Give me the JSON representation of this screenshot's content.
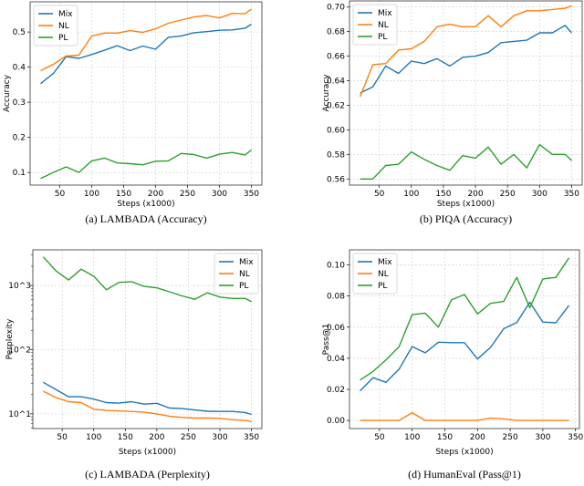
{
  "colors": {
    "Mix": "#1f77b4",
    "NL": "#ff7f0e",
    "PL": "#2ca02c"
  },
  "chart_data": [
    {
      "type": "line",
      "caption": "(a) LAMBADA (Accuracy)",
      "xlabel": "",
      "ylabel": "Accuracy",
      "xlim": [
        3.5,
        366.5
      ],
      "ylim": [
        0.064,
        0.586
      ],
      "yscale": "linear",
      "xticks": [
        50,
        100,
        150,
        200,
        250,
        300,
        350
      ],
      "yticks": [
        0.1,
        0.2,
        0.3,
        0.4,
        0.5
      ],
      "ytick_labels": [
        "0.1",
        "0.2",
        "0.3",
        "0.4",
        "0.5"
      ],
      "grid": true,
      "legend": "top-left",
      "x": [
        20,
        40,
        60,
        80,
        100,
        120,
        140,
        160,
        180,
        200,
        220,
        240,
        260,
        280,
        300,
        320,
        340,
        350
      ],
      "series": [
        {
          "name": "Mix",
          "values": [
            0.353,
            0.382,
            0.43,
            0.425,
            0.436,
            0.448,
            0.461,
            0.447,
            0.46,
            0.451,
            0.485,
            0.489,
            0.498,
            0.501,
            0.505,
            0.506,
            0.511,
            0.522
          ]
        },
        {
          "name": "NL",
          "values": [
            0.39,
            0.408,
            0.432,
            0.434,
            0.489,
            0.497,
            0.497,
            0.504,
            0.499,
            0.509,
            0.525,
            0.534,
            0.543,
            0.547,
            0.54,
            0.553,
            0.552,
            0.565
          ]
        },
        {
          "name": "PL",
          "values": [
            0.083,
            0.1,
            0.116,
            0.1,
            0.133,
            0.141,
            0.127,
            0.125,
            0.122,
            0.132,
            0.133,
            0.154,
            0.151,
            0.141,
            0.152,
            0.157,
            0.15,
            0.164
          ]
        }
      ]
    },
    {
      "type": "line",
      "caption": "(b) PIQA (Accuracy)",
      "xlabel": "",
      "ylabel": "Accuracy",
      "xlim": [
        3.5,
        366.5
      ],
      "ylim": [
        0.555,
        0.705
      ],
      "yscale": "linear",
      "xticks": [
        50,
        100,
        150,
        200,
        250,
        300,
        350
      ],
      "yticks": [
        0.56,
        0.58,
        0.6,
        0.62,
        0.64,
        0.66,
        0.68,
        0.7
      ],
      "ytick_labels": [
        "0.56",
        "0.58",
        "0.60",
        "0.62",
        "0.64",
        "0.66",
        "0.68",
        "0.70"
      ],
      "grid": true,
      "legend": "top-left",
      "x": [
        20,
        40,
        60,
        80,
        100,
        120,
        140,
        160,
        180,
        200,
        220,
        240,
        260,
        280,
        300,
        320,
        340,
        350
      ],
      "series": [
        {
          "name": "Mix",
          "values": [
            0.63,
            0.635,
            0.652,
            0.646,
            0.656,
            0.654,
            0.658,
            0.652,
            0.659,
            0.66,
            0.663,
            0.671,
            0.672,
            0.673,
            0.679,
            0.679,
            0.685,
            0.679
          ]
        },
        {
          "name": "NL",
          "values": [
            0.627,
            0.653,
            0.654,
            0.665,
            0.666,
            0.672,
            0.684,
            0.686,
            0.684,
            0.684,
            0.693,
            0.684,
            0.693,
            0.697,
            0.697,
            0.698,
            0.699,
            0.701
          ]
        },
        {
          "name": "PL",
          "values": [
            0.56,
            0.56,
            0.571,
            0.572,
            0.582,
            0.576,
            0.571,
            0.567,
            0.579,
            0.577,
            0.586,
            0.572,
            0.58,
            0.569,
            0.588,
            0.58,
            0.58,
            0.575
          ]
        }
      ]
    },
    {
      "type": "line",
      "caption": "(c) LAMBADA (Perplexity)",
      "xlabel": "Steps (x1000)",
      "ylabel": "Perplexity",
      "xlim": [
        3.5,
        366.5
      ],
      "ylim": [
        5.9,
        3600
      ],
      "yscale": "log",
      "xticks": [
        50,
        100,
        150,
        200,
        250,
        300,
        350
      ],
      "yticks": [
        10,
        100,
        1000
      ],
      "ytick_labels": [
        "10^1",
        "10^2",
        "10^3"
      ],
      "grid": true,
      "legend": "top-right",
      "x": [
        20,
        40,
        60,
        80,
        100,
        120,
        140,
        160,
        180,
        200,
        220,
        240,
        260,
        280,
        300,
        320,
        340,
        350
      ],
      "series": [
        {
          "name": "Mix",
          "values": [
            31,
            24,
            18.5,
            18.5,
            17,
            15,
            14.7,
            15.5,
            14.2,
            14.6,
            12.3,
            12.1,
            11.5,
            11,
            10.9,
            10.9,
            10.5,
            9.8
          ]
        },
        {
          "name": "NL",
          "values": [
            22.5,
            18,
            15.5,
            15,
            11.8,
            11.3,
            11.1,
            10.9,
            10.6,
            10,
            9.2,
            8.8,
            8.6,
            8.6,
            8.5,
            8.1,
            7.9,
            7.6
          ]
        },
        {
          "name": "PL",
          "values": [
            2800,
            1700,
            1220,
            1800,
            1400,
            860,
            1120,
            1150,
            970,
            920,
            800,
            690,
            610,
            770,
            660,
            630,
            630,
            560
          ]
        }
      ]
    },
    {
      "type": "line",
      "caption": "(d) HumanEval (Pass@1)",
      "xlabel": "Steps (x1000)",
      "ylabel": "Pass@1",
      "xlim": [
        4,
        356
      ],
      "ylim": [
        -0.0052,
        0.1097
      ],
      "yscale": "linear",
      "xticks": [
        50,
        100,
        150,
        200,
        250,
        300,
        350
      ],
      "yticks": [
        0.0,
        0.02,
        0.04,
        0.06,
        0.08,
        0.1
      ],
      "ytick_labels": [
        "0.00",
        "0.02",
        "0.04",
        "0.06",
        "0.08",
        "0.10"
      ],
      "grid": true,
      "legend": "top-left",
      "x": [
        20,
        40,
        60,
        80,
        100,
        120,
        140,
        160,
        180,
        200,
        220,
        240,
        260,
        280,
        300,
        320,
        340
      ],
      "series": [
        {
          "name": "Mix",
          "values": [
            0.019,
            0.0275,
            0.0245,
            0.033,
            0.0475,
            0.0435,
            0.0503,
            0.05,
            0.05,
            0.0395,
            0.047,
            0.059,
            0.063,
            0.076,
            0.0633,
            0.0628,
            0.074
          ]
        },
        {
          "name": "NL",
          "values": [
            0,
            0,
            0,
            0,
            0.005,
            0,
            0,
            0,
            0,
            0,
            0.0015,
            0.001,
            0,
            0,
            0,
            0,
            0
          ]
        },
        {
          "name": "PL",
          "values": [
            0.026,
            0.0315,
            0.039,
            0.0475,
            0.068,
            0.069,
            0.06,
            0.0775,
            0.081,
            0.0685,
            0.0753,
            0.0765,
            0.092,
            0.0725,
            0.091,
            0.092,
            0.1045
          ]
        }
      ]
    }
  ]
}
